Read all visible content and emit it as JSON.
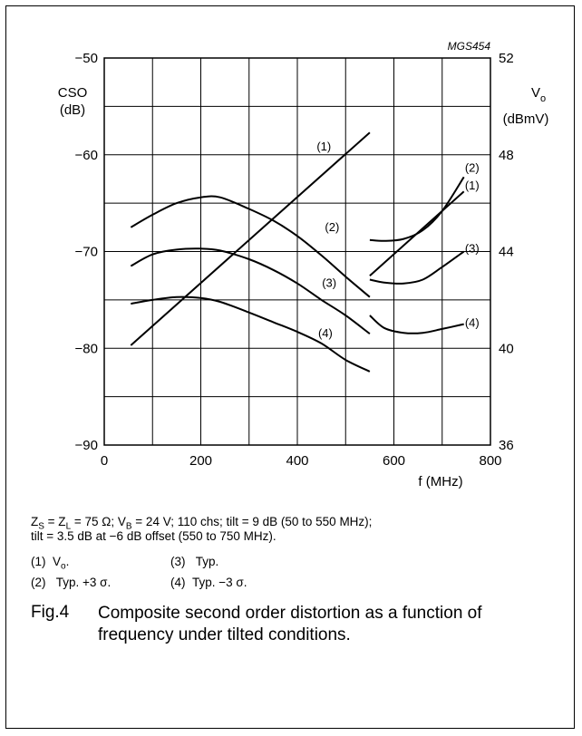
{
  "figure_code": "MGS454",
  "note_line1": "Z_S = Z_L = 75 Ω; V_B = 24 V; 110 chs; tilt = 9 dB (50 to 550 MHz);",
  "note_line2": "tilt = 3.5 dB at −6 dB offset (550 to 750 MHz).",
  "legend": [
    {
      "num": "(1)",
      "text": "V",
      "sub": "o",
      "tail": "."
    },
    {
      "num": "(2)",
      "text": "Typ. +3 σ.",
      "sub": "",
      "tail": ""
    },
    {
      "num": "(3)",
      "text": "Typ.",
      "sub": "",
      "tail": ""
    },
    {
      "num": "(4)",
      "text": "Typ. −3 σ.",
      "sub": "",
      "tail": ""
    }
  ],
  "caption": {
    "number": "Fig.4",
    "text": "Composite second order distortion as a function of frequency under tilted conditions."
  },
  "chart_data": {
    "type": "line",
    "xlabel": "f (MHz)",
    "ylabel_left_line1": "CSO",
    "ylabel_left_line2": "(dB)",
    "ylabel_right_main": "V",
    "ylabel_right_sub": "o",
    "ylabel_right_unit": "(dBmV)",
    "xlim": [
      0,
      800
    ],
    "ylim_left": [
      -90,
      -50
    ],
    "ylim_right": [
      36,
      52
    ],
    "x_ticks": [
      0,
      200,
      400,
      600,
      800
    ],
    "x_tick_labels": [
      "0",
      "200",
      "400",
      "600",
      "800"
    ],
    "x_grid": [
      0,
      100,
      200,
      300,
      400,
      500,
      600,
      700,
      800
    ],
    "y_left_ticks": [
      -90,
      -80,
      -70,
      -60,
      -50
    ],
    "y_left_tick_labels": [
      "−90",
      "−80",
      "−70",
      "−60",
      "−50"
    ],
    "y_grid": [
      -90,
      -85,
      -80,
      -75,
      -70,
      -65,
      -60,
      -55,
      -50
    ],
    "y_right_ticks": [
      36,
      40,
      44,
      48,
      52
    ],
    "y_right_tick_labels": [
      "36",
      "40",
      "44",
      "48",
      "52"
    ],
    "grid": true,
    "series": [
      {
        "label": "(1)",
        "axis": "left",
        "segments": [
          [
            [
              55,
              -79.7
            ],
            [
              550,
              -57.7
            ]
          ],
          [
            [
              550,
              -72.5
            ],
            [
              745,
              -63.8
            ]
          ]
        ]
      },
      {
        "label": "(2)",
        "axis": "left",
        "segments": [
          [
            [
              55,
              -67.5
            ],
            [
              100,
              -66.2
            ],
            [
              150,
              -65.0
            ],
            [
              200,
              -64.4
            ],
            [
              240,
              -64.4
            ],
            [
              300,
              -65.6
            ],
            [
              350,
              -66.8
            ],
            [
              400,
              -68.4
            ],
            [
              450,
              -70.4
            ],
            [
              500,
              -72.6
            ],
            [
              550,
              -74.7
            ]
          ],
          [
            [
              550,
              -68.8
            ],
            [
              580,
              -68.9
            ],
            [
              620,
              -68.7
            ],
            [
              660,
              -67.8
            ],
            [
              700,
              -65.8
            ],
            [
              745,
              -62.3
            ]
          ]
        ]
      },
      {
        "label": "(3)",
        "axis": "left",
        "segments": [
          [
            [
              55,
              -71.5
            ],
            [
              100,
              -70.3
            ],
            [
              150,
              -69.8
            ],
            [
              200,
              -69.7
            ],
            [
              240,
              -69.9
            ],
            [
              300,
              -70.8
            ],
            [
              350,
              -71.9
            ],
            [
              400,
              -73.3
            ],
            [
              450,
              -75.0
            ],
            [
              500,
              -76.6
            ],
            [
              550,
              -78.5
            ]
          ],
          [
            [
              550,
              -72.9
            ],
            [
              580,
              -73.2
            ],
            [
              620,
              -73.3
            ],
            [
              660,
              -72.9
            ],
            [
              700,
              -71.6
            ],
            [
              745,
              -70.0
            ]
          ]
        ]
      },
      {
        "label": "(4)",
        "axis": "left",
        "segments": [
          [
            [
              55,
              -75.4
            ],
            [
              100,
              -75.0
            ],
            [
              150,
              -74.7
            ],
            [
              200,
              -74.8
            ],
            [
              240,
              -75.2
            ],
            [
              300,
              -76.3
            ],
            [
              350,
              -77.3
            ],
            [
              400,
              -78.3
            ],
            [
              450,
              -79.5
            ],
            [
              500,
              -81.2
            ],
            [
              550,
              -82.4
            ]
          ],
          [
            [
              550,
              -76.6
            ],
            [
              580,
              -77.9
            ],
            [
              620,
              -78.4
            ],
            [
              660,
              -78.4
            ],
            [
              700,
              -78.0
            ],
            [
              745,
              -77.5
            ]
          ]
        ]
      }
    ],
    "annotations": [
      {
        "text": "(1)",
        "x": 455,
        "y": -59.2
      },
      {
        "text": "(2)",
        "x": 472,
        "y": -67.5
      },
      {
        "text": "(3)",
        "x": 466,
        "y": -73.3
      },
      {
        "text": "(4)",
        "x": 458,
        "y": -78.5
      },
      {
        "text": "(2)",
        "x": 762,
        "y": -61.4
      },
      {
        "text": "(1)",
        "x": 762,
        "y": -63.2
      },
      {
        "text": "(3)",
        "x": 762,
        "y": -69.7
      },
      {
        "text": "(4)",
        "x": 762,
        "y": -77.4
      }
    ]
  }
}
